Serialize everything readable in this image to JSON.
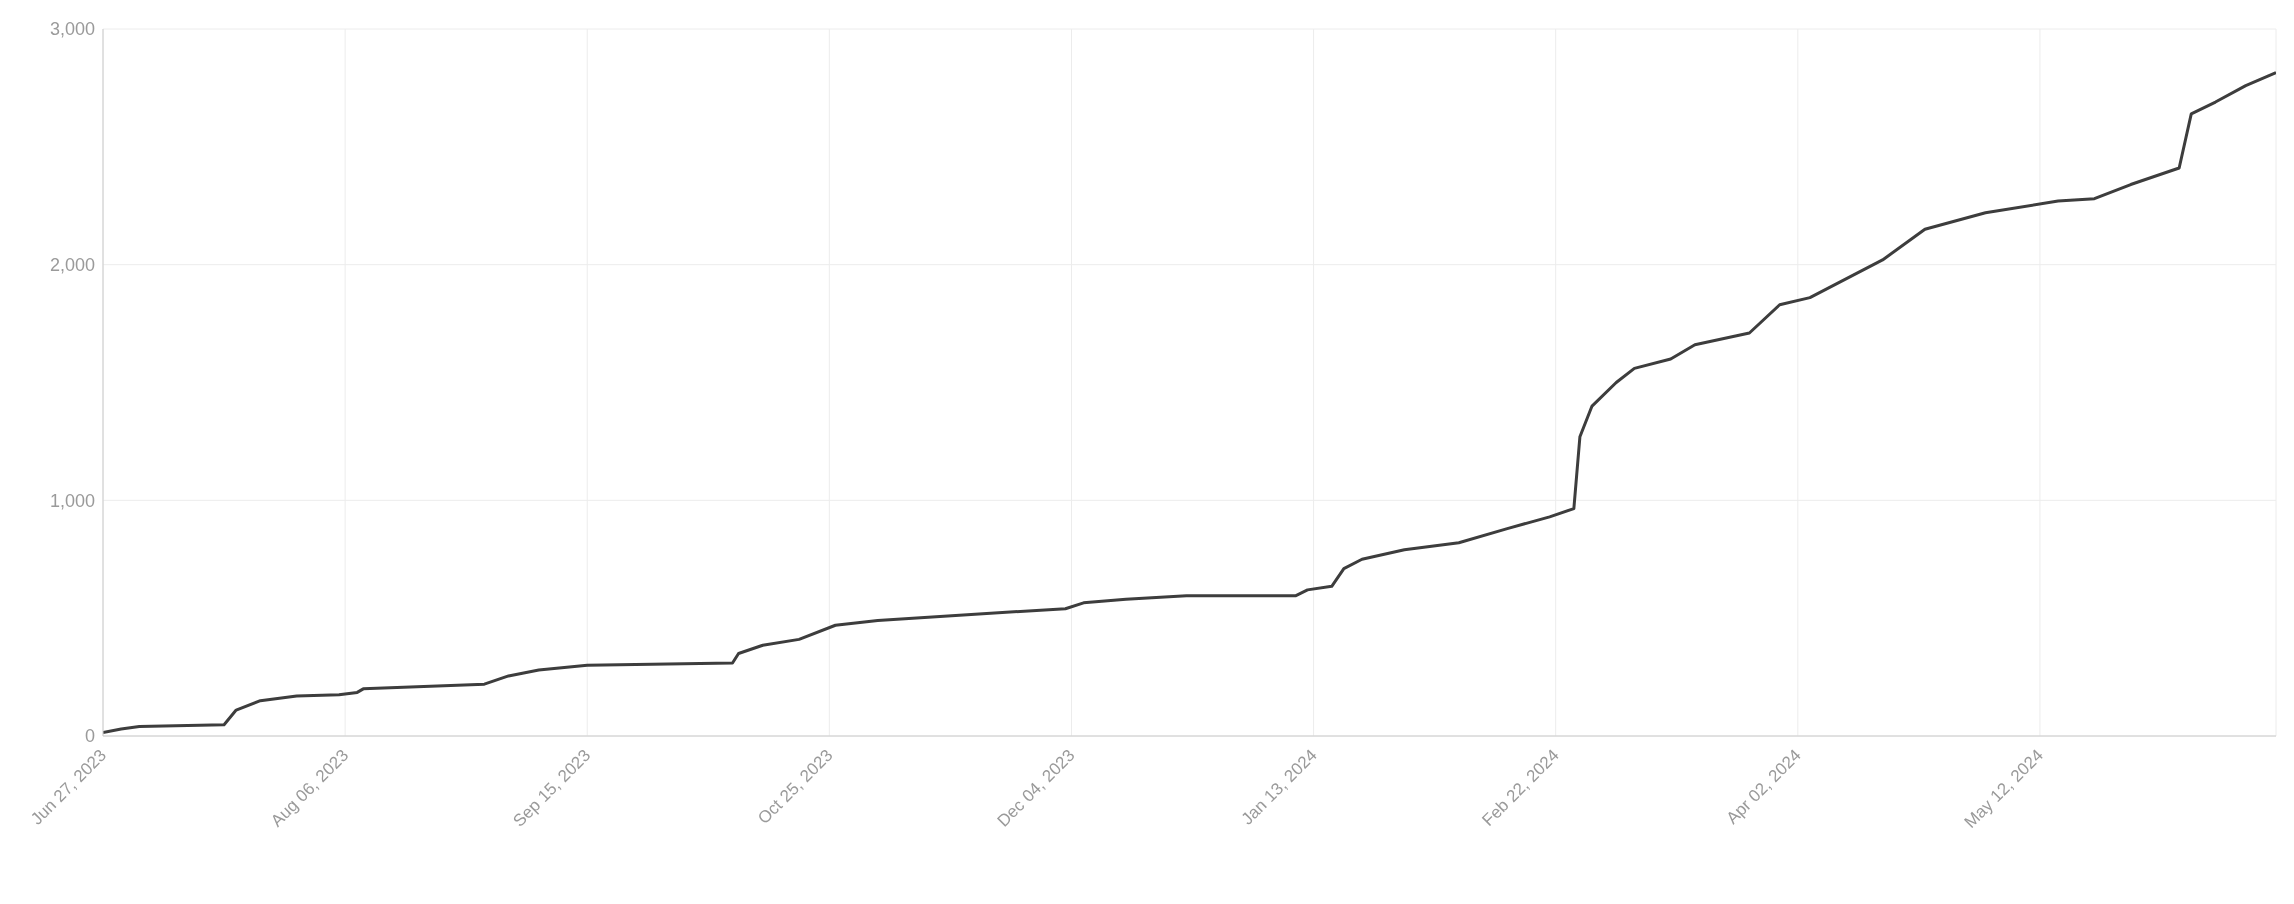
{
  "chart_data": {
    "type": "line",
    "x": [
      "2023-06-27",
      "2023-06-30",
      "2023-07-03",
      "2023-07-17",
      "2023-07-19",
      "2023-07-23",
      "2023-07-29",
      "2023-08-05",
      "2023-08-08",
      "2023-08-09",
      "2023-08-29",
      "2023-09-02",
      "2023-09-07",
      "2023-09-15",
      "2023-10-09",
      "2023-10-10",
      "2023-10-14",
      "2023-10-20",
      "2023-10-26",
      "2023-11-02",
      "2023-11-20",
      "2023-12-03",
      "2023-12-06",
      "2023-12-13",
      "2023-12-23",
      "2024-01-10",
      "2024-01-12",
      "2024-01-16",
      "2024-01-18",
      "2024-01-21",
      "2024-01-28",
      "2024-02-06",
      "2024-02-14",
      "2024-02-21",
      "2024-02-25",
      "2024-02-26",
      "2024-02-28",
      "2024-03-03",
      "2024-03-06",
      "2024-03-12",
      "2024-03-16",
      "2024-03-25",
      "2024-03-30",
      "2024-04-04",
      "2024-04-16",
      "2024-04-23",
      "2024-05-03",
      "2024-05-15",
      "2024-05-21",
      "2024-05-27",
      "2024-06-04",
      "2024-06-06",
      "2024-06-10",
      "2024-06-15",
      "2024-06-20"
    ],
    "series": [
      {
        "color": "#3d3d3d",
        "values": [
          15,
          30,
          40,
          48,
          110,
          150,
          170,
          175,
          185,
          200,
          220,
          255,
          280,
          300,
          310,
          350,
          385,
          410,
          470,
          490,
          520,
          540,
          565,
          580,
          595,
          595,
          620,
          635,
          710,
          750,
          790,
          820,
          880,
          930,
          965,
          1270,
          1400,
          1500,
          1560,
          1600,
          1660,
          1710,
          1830,
          1860,
          2020,
          2150,
          2220,
          2270,
          2280,
          2340,
          2410,
          2640,
          2690,
          2760,
          2815
        ]
      }
    ],
    "xlim": [
      "2023-06-27",
      "2024-06-20"
    ],
    "xticks": [
      {
        "value": "2023-06-27",
        "label": "Jun 27, 2023"
      },
      {
        "value": "2023-08-06",
        "label": "Aug 06, 2023"
      },
      {
        "value": "2023-09-15",
        "label": "Sep 15, 2023"
      },
      {
        "value": "2023-10-25",
        "label": "Oct 25, 2023"
      },
      {
        "value": "2023-12-04",
        "label": "Dec 04, 2023"
      },
      {
        "value": "2024-01-13",
        "label": "Jan 13, 2024"
      },
      {
        "value": "2024-02-22",
        "label": "Feb 22, 2024"
      },
      {
        "value": "2024-04-02",
        "label": "Apr 02, 2024"
      },
      {
        "value": "2024-05-12",
        "label": "May 12, 2024"
      }
    ],
    "ylim": [
      0,
      3000
    ],
    "yticks": [
      0,
      {
        "value": 1000,
        "label": "1,000"
      },
      {
        "value": 2000,
        "label": "2,000"
      },
      {
        "value": 3000,
        "label": "3,000"
      }
    ],
    "grid": true,
    "legend": false,
    "marker": "none",
    "line_style": "solid"
  }
}
